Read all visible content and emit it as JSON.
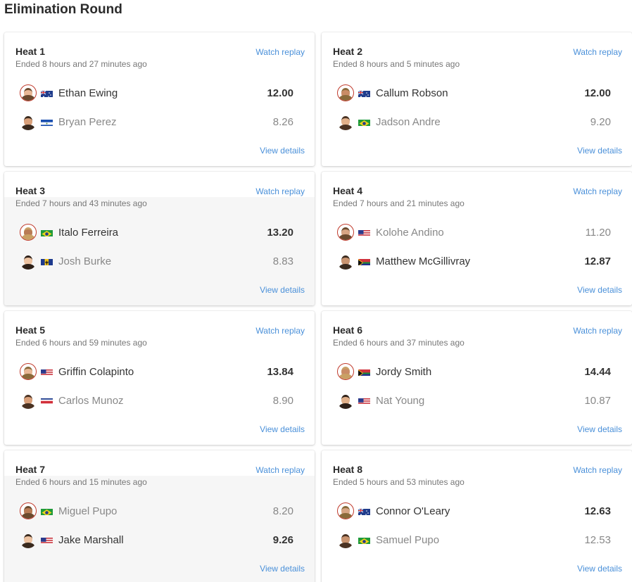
{
  "page_title": "Elimination Round",
  "watch_label": "Watch replay",
  "details_label": "View details",
  "heats": [
    {
      "title": "Heat 1",
      "ended": "Ended 8 hours and 27 minutes ago",
      "surfers": [
        {
          "name": "Ethan Ewing",
          "score": "12.00",
          "flag": "australia-flag",
          "winner": true
        },
        {
          "name": "Bryan Perez",
          "score": "8.26",
          "flag": "el-salvador-flag",
          "winner": false
        }
      ]
    },
    {
      "title": "Heat 2",
      "ended": "Ended 8 hours and 5 minutes ago",
      "surfers": [
        {
          "name": "Callum Robson",
          "score": "12.00",
          "flag": "australia-flag",
          "winner": true
        },
        {
          "name": "Jadson Andre",
          "score": "9.20",
          "flag": "brazil-flag",
          "winner": false
        }
      ]
    },
    {
      "title": "Heat 3",
      "ended": "Ended 7 hours and 43 minutes ago",
      "surfers": [
        {
          "name": "Italo Ferreira",
          "score": "13.20",
          "flag": "brazil-flag",
          "winner": true
        },
        {
          "name": "Josh Burke",
          "score": "8.83",
          "flag": "barbados-flag",
          "winner": false
        }
      ]
    },
    {
      "title": "Heat 4",
      "ended": "Ended 7 hours and 21 minutes ago",
      "surfers": [
        {
          "name": "Kolohe Andino",
          "score": "11.20",
          "flag": "usa-flag",
          "winner": false
        },
        {
          "name": "Matthew McGillivray",
          "score": "12.87",
          "flag": "south-africa-flag",
          "winner": true
        }
      ]
    },
    {
      "title": "Heat 5",
      "ended": "Ended 6 hours and 59 minutes ago",
      "surfers": [
        {
          "name": "Griffin Colapinto",
          "score": "13.84",
          "flag": "usa-flag",
          "winner": true
        },
        {
          "name": "Carlos Munoz",
          "score": "8.90",
          "flag": "costa-rica-flag",
          "winner": false
        }
      ]
    },
    {
      "title": "Heat 6",
      "ended": "Ended 6 hours and 37 minutes ago",
      "surfers": [
        {
          "name": "Jordy Smith",
          "score": "14.44",
          "flag": "south-africa-flag",
          "winner": true
        },
        {
          "name": "Nat Young",
          "score": "10.87",
          "flag": "usa-flag",
          "winner": false
        }
      ]
    },
    {
      "title": "Heat 7",
      "ended": "Ended 6 hours and 15 minutes ago",
      "surfers": [
        {
          "name": "Miguel Pupo",
          "score": "8.20",
          "flag": "brazil-flag",
          "winner": false
        },
        {
          "name": "Jake Marshall",
          "score": "9.26",
          "flag": "usa-flag",
          "winner": true
        }
      ]
    },
    {
      "title": "Heat 8",
      "ended": "Ended 5 hours and 53 minutes ago",
      "surfers": [
        {
          "name": "Connor O'Leary",
          "score": "12.63",
          "flag": "australia-flag",
          "winner": true
        },
        {
          "name": "Samuel Pupo",
          "score": "12.53",
          "flag": "brazil-flag",
          "winner": false
        }
      ]
    }
  ],
  "colors": {
    "link": "#4a90d9",
    "ring": "#c0392b"
  }
}
